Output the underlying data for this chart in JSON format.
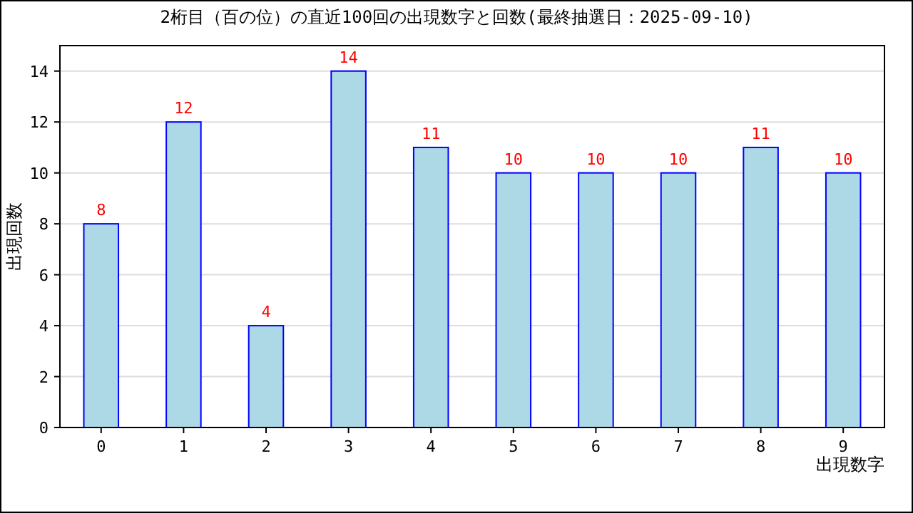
{
  "chart_data": {
    "type": "bar",
    "title": "2桁目（百の位）の直近100回の出現数字と回数(最終抽選日：2025-09-10)",
    "xlabel": "出現数字",
    "ylabel": "出現回数",
    "categories": [
      "0",
      "1",
      "2",
      "3",
      "4",
      "5",
      "6",
      "7",
      "8",
      "9"
    ],
    "values": [
      8,
      12,
      4,
      14,
      11,
      10,
      10,
      10,
      11,
      10
    ],
    "color": "#add8e6",
    "ylim": [
      0,
      15
    ],
    "yticks": [
      0,
      2,
      4,
      6,
      8,
      10,
      12,
      14
    ],
    "grid": "y",
    "data_labels": true
  }
}
